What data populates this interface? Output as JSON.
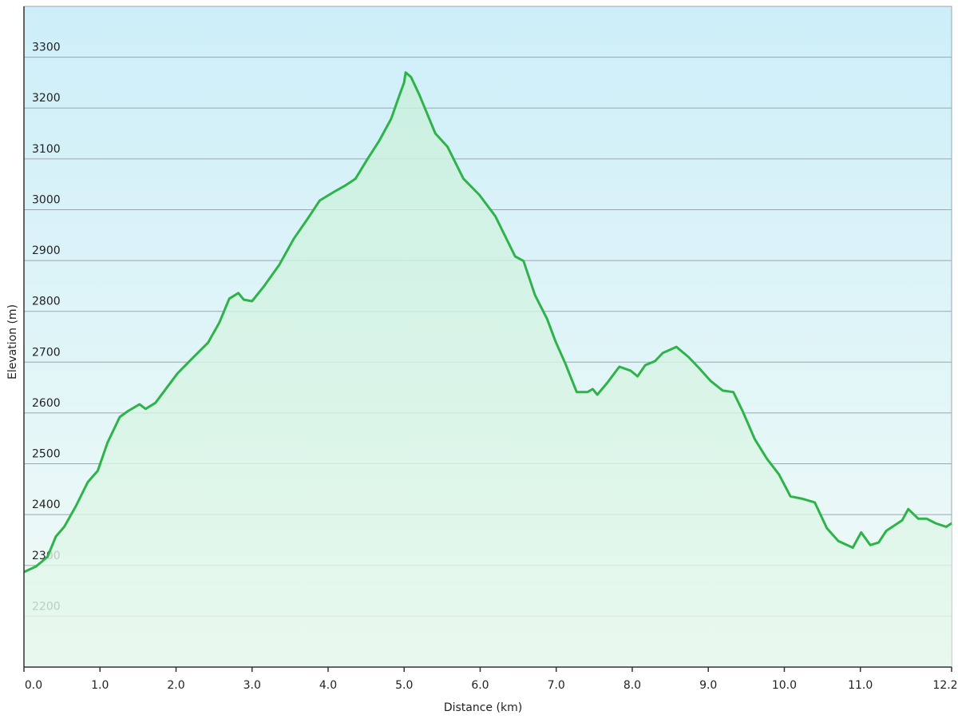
{
  "chart_data": {
    "type": "area",
    "x_label": "Distance  (km)",
    "y_label": "Elevation (m)",
    "color": "#2db34a",
    "grid": true,
    "xlim": [
      0,
      12.2
    ],
    "ylim": [
      2100,
      3400
    ],
    "xticks": [
      {
        "value": 0,
        "label": "0.0"
      },
      {
        "value": 1,
        "label": "1.0"
      },
      {
        "value": 2,
        "label": "2.0"
      },
      {
        "value": 3,
        "label": "3.0"
      },
      {
        "value": 4,
        "label": "4.0"
      },
      {
        "value": 5,
        "label": "5.0"
      },
      {
        "value": 6,
        "label": "6.0"
      },
      {
        "value": 7,
        "label": "7.0"
      },
      {
        "value": 8,
        "label": "8.0"
      },
      {
        "value": 9,
        "label": "9.0"
      },
      {
        "value": 10,
        "label": "10.0"
      },
      {
        "value": 11,
        "label": "11.0"
      },
      12.2
    ],
    "yticks": [
      2200,
      2300,
      2400,
      2500,
      2600,
      2700,
      2800,
      2900,
      3000,
      3100,
      3200,
      3300
    ],
    "x": [
      0,
      0.16,
      0.31,
      0.42,
      0.53,
      0.68,
      0.84,
      0.97,
      1.1,
      1.26,
      1.37,
      1.52,
      1.6,
      1.73,
      1.89,
      2.02,
      2.21,
      2.42,
      2.57,
      2.7,
      2.82,
      2.89,
      3.0,
      3.15,
      3.36,
      3.55,
      3.73,
      3.89,
      4.1,
      4.22,
      4.36,
      4.52,
      4.67,
      4.83,
      4.94,
      5.0,
      5.02,
      5.09,
      5.2,
      5.41,
      5.57,
      5.78,
      5.99,
      6.2,
      6.46,
      6.57,
      6.72,
      6.88,
      6.99,
      7.12,
      7.27,
      7.41,
      7.48,
      7.54,
      7.67,
      7.83,
      7.98,
      8.07,
      8.17,
      8.3,
      8.4,
      8.58,
      8.74,
      8.88,
      9.03,
      9.19,
      9.33,
      9.45,
      9.61,
      9.77,
      9.93,
      10.08,
      10.24,
      10.4,
      10.56,
      10.71,
      10.9,
      11.01,
      11.13,
      11.24,
      11.34,
      11.55,
      11.63,
      11.76,
      11.87,
      11.99,
      12.13,
      12.2
    ],
    "values": [
      2287,
      2298,
      2317,
      2357,
      2376,
      2416,
      2464,
      2486,
      2542,
      2592,
      2604,
      2617,
      2608,
      2620,
      2652,
      2678,
      2707,
      2738,
      2778,
      2825,
      2836,
      2823,
      2820,
      2848,
      2892,
      2943,
      2982,
      3018,
      3037,
      3047,
      3061,
      3100,
      3135,
      3179,
      3226,
      3250,
      3270,
      3261,
      3226,
      3150,
      3124,
      3061,
      3029,
      2987,
      2908,
      2899,
      2832,
      2785,
      2741,
      2697,
      2641,
      2641,
      2647,
      2636,
      2659,
      2691,
      2683,
      2672,
      2694,
      2702,
      2718,
      2730,
      2710,
      2688,
      2663,
      2644,
      2641,
      2604,
      2549,
      2510,
      2479,
      2436,
      2431,
      2424,
      2373,
      2348,
      2335,
      2365,
      2340,
      2345,
      2368,
      2389,
      2411,
      2392,
      2392,
      2383,
      2376,
      2383
    ]
  }
}
